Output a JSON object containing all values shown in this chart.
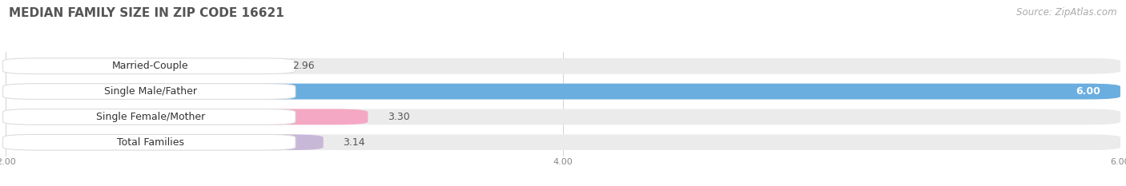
{
  "title": "MEDIAN FAMILY SIZE IN ZIP CODE 16621",
  "source": "Source: ZipAtlas.com",
  "categories": [
    "Married-Couple",
    "Single Male/Father",
    "Single Female/Mother",
    "Total Families"
  ],
  "values": [
    2.96,
    6.0,
    3.3,
    3.14
  ],
  "bar_colors": [
    "#72ceca",
    "#6aaee0",
    "#f4a8c4",
    "#c8b8d8"
  ],
  "xlim_min": 2.0,
  "xlim_max": 6.0,
  "xticks": [
    2.0,
    4.0,
    6.0
  ],
  "background_color": "#ffffff",
  "bar_bg_color": "#ebebeb",
  "label_bg_color": "#ffffff",
  "title_fontsize": 11,
  "source_fontsize": 8.5,
  "cat_fontsize": 9,
  "val_fontsize": 9
}
